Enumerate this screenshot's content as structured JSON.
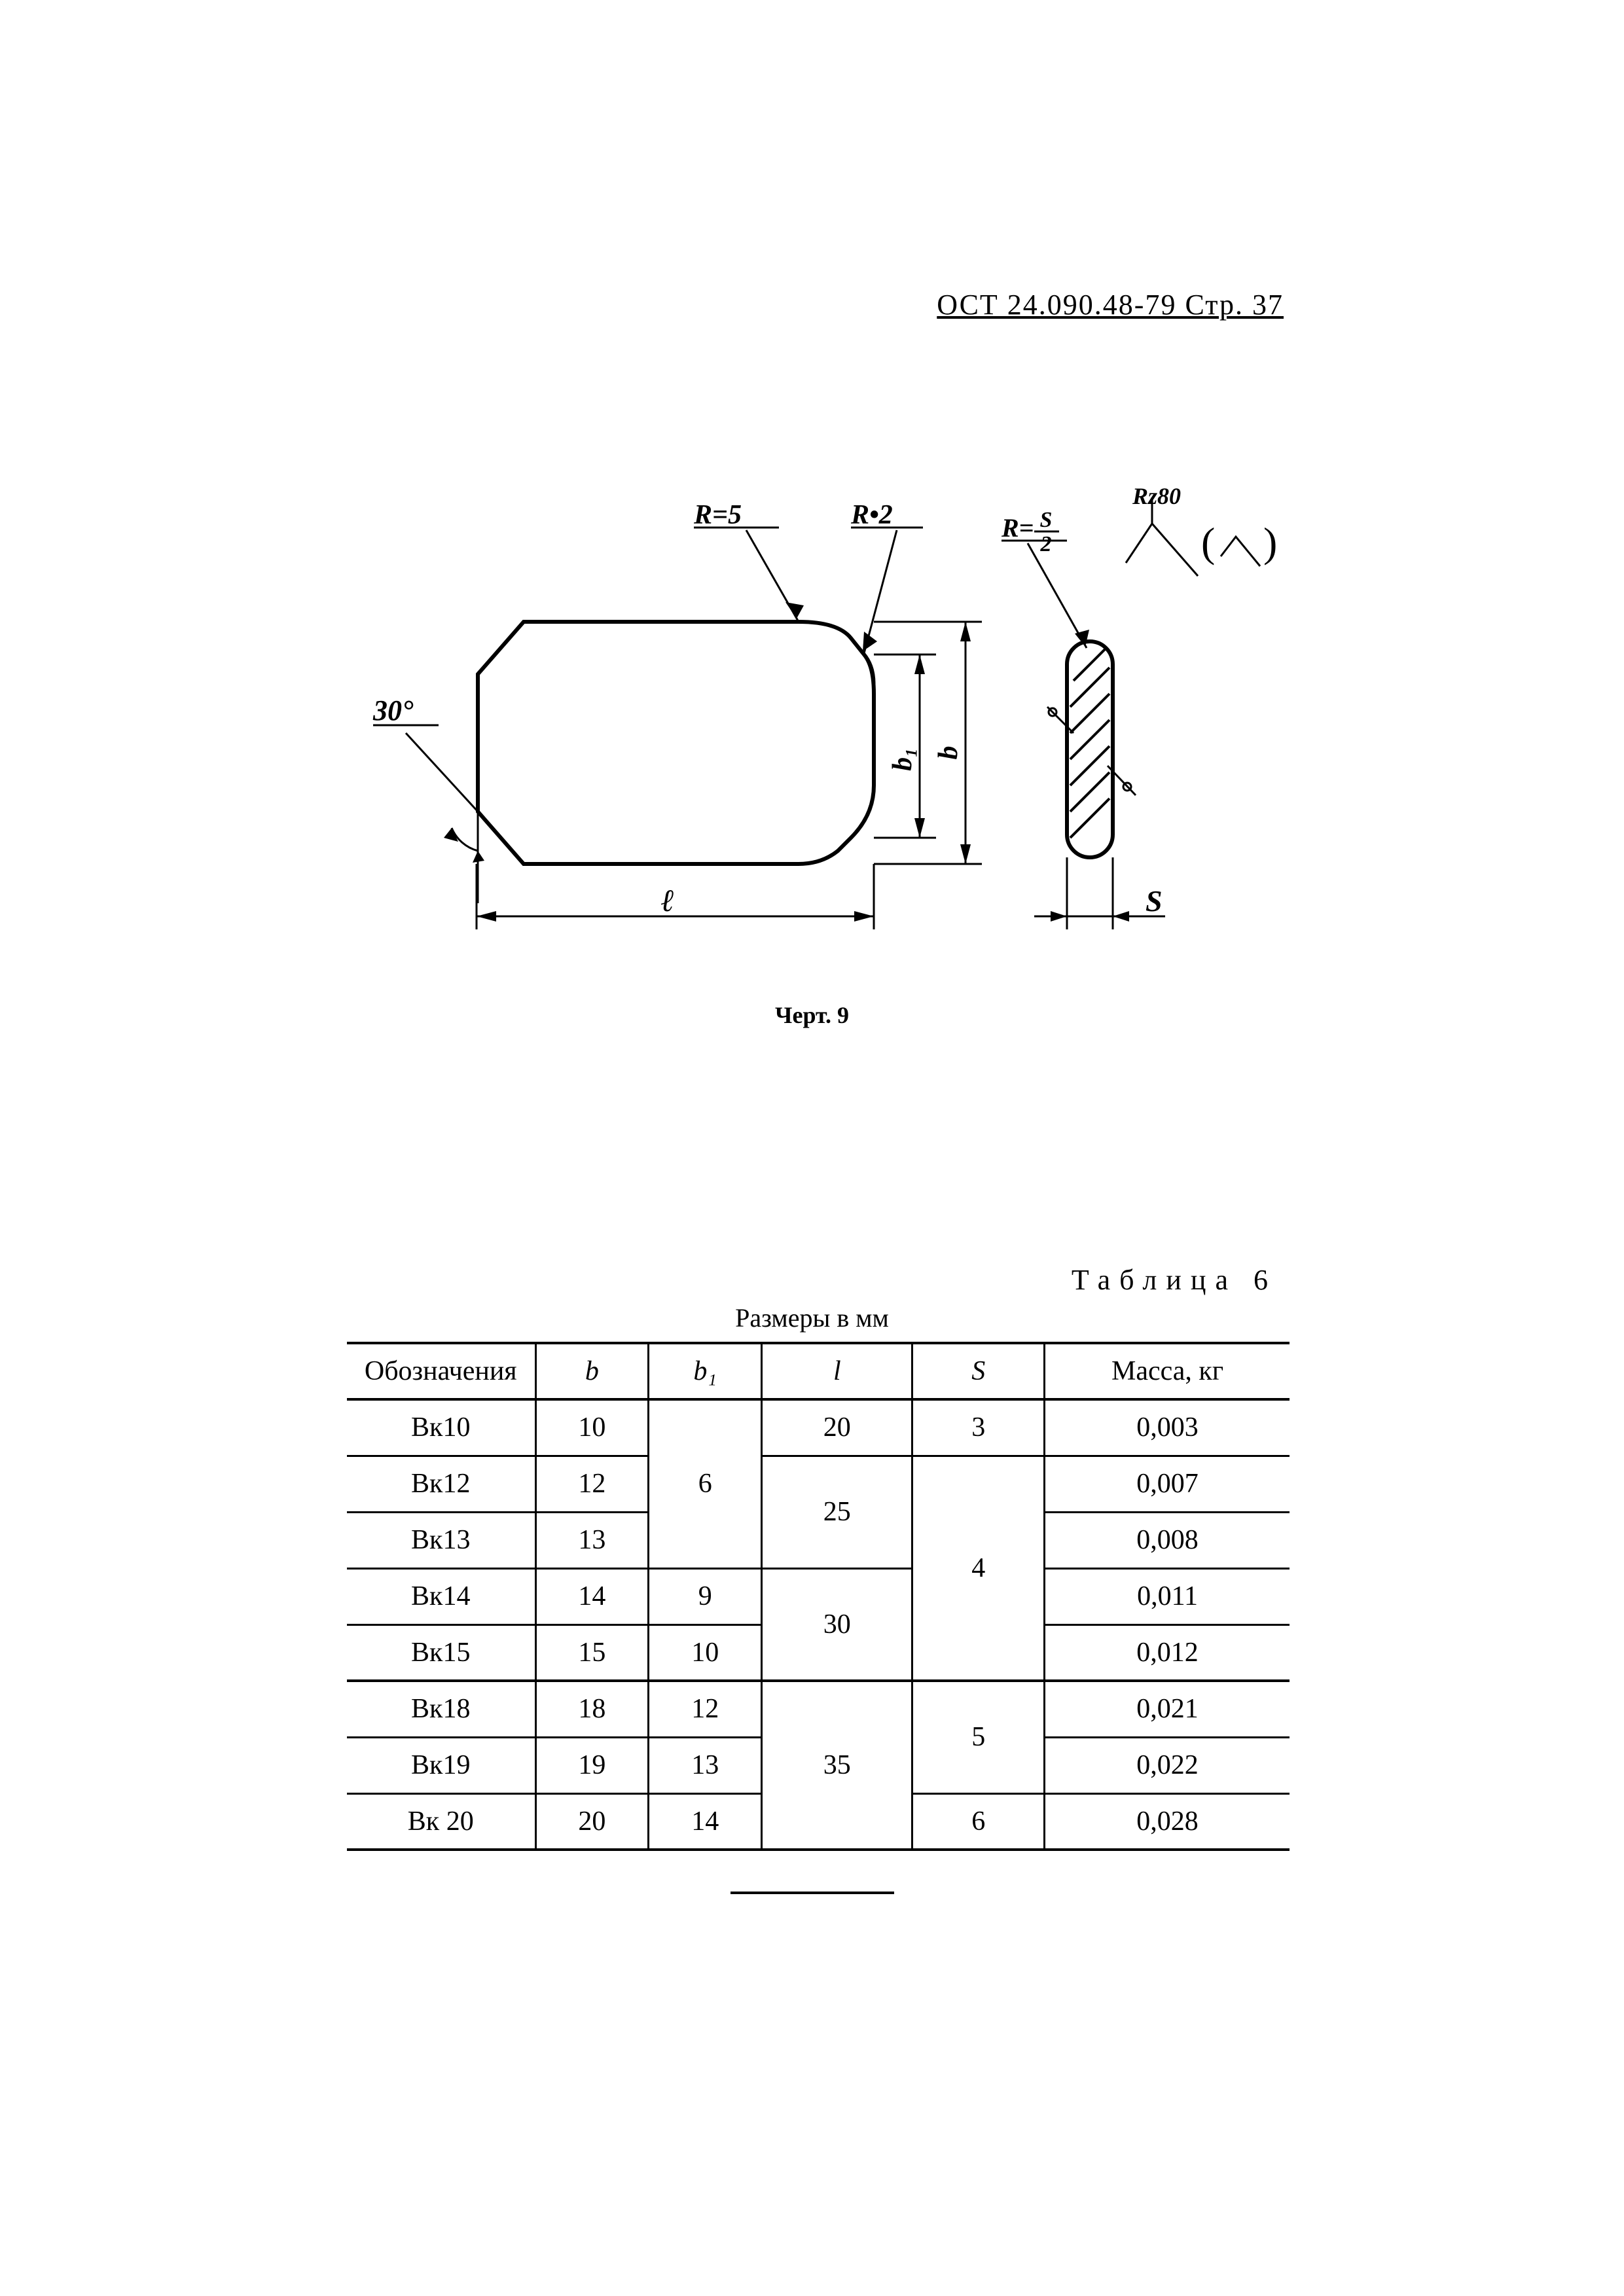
{
  "header": {
    "doc_ref": "ОСТ 24.090.48-79 Стр. 37"
  },
  "figure": {
    "caption": "Черт. 9",
    "labels": {
      "angle": "30°",
      "r5": "R=5",
      "r2": "R•2",
      "r_s2": "R= S/2",
      "rz": "Rz80",
      "b1": "b₁",
      "b": "b",
      "l": "ℓ",
      "s": "S"
    },
    "stroke_color": "#000000",
    "bg_color": "#ffffff",
    "thin_width": 3,
    "thick_width": 6,
    "label_fontsize": 42
  },
  "table": {
    "title_right": "Таблица 6",
    "title_center": "Размеры в мм",
    "columns": [
      "Обозначения",
      "b",
      "b₁",
      "l",
      "S",
      "Масса, кг"
    ],
    "column_widths_pct": [
      20,
      12,
      12,
      16,
      14,
      26
    ],
    "header_fontsize": 42,
    "cell_fontsize": 42,
    "border_color": "#000000",
    "rows_designation": [
      "Вк10",
      "Вк12",
      "Вк13",
      "Вк14",
      "Вк15",
      "Вк18",
      "Вк19",
      "Вк 20"
    ],
    "rows_b": [
      "10",
      "12",
      "13",
      "14",
      "15",
      "18",
      "19",
      "20"
    ],
    "rows_mass": [
      "0,003",
      "0,007",
      "0,008",
      "0,011",
      "0,012",
      "0,021",
      "0,022",
      "0,028"
    ],
    "b1_groups": [
      {
        "value": "6",
        "span": 3
      },
      {
        "value": "9",
        "span": 1
      },
      {
        "value": "10",
        "span": 1
      },
      {
        "value": "12",
        "span": 1
      },
      {
        "value": "13",
        "span": 1
      },
      {
        "value": "14",
        "span": 1
      }
    ],
    "l_groups": [
      {
        "value": "20",
        "span": 1
      },
      {
        "value": "25",
        "span": 2
      },
      {
        "value": "30",
        "span": 2
      },
      {
        "value": "35",
        "span": 3
      }
    ],
    "s_groups": [
      {
        "value": "3",
        "span": 1
      },
      {
        "value": "4",
        "span": 4
      },
      {
        "value": "5",
        "span": 2
      },
      {
        "value": "6",
        "span": 1
      }
    ]
  }
}
